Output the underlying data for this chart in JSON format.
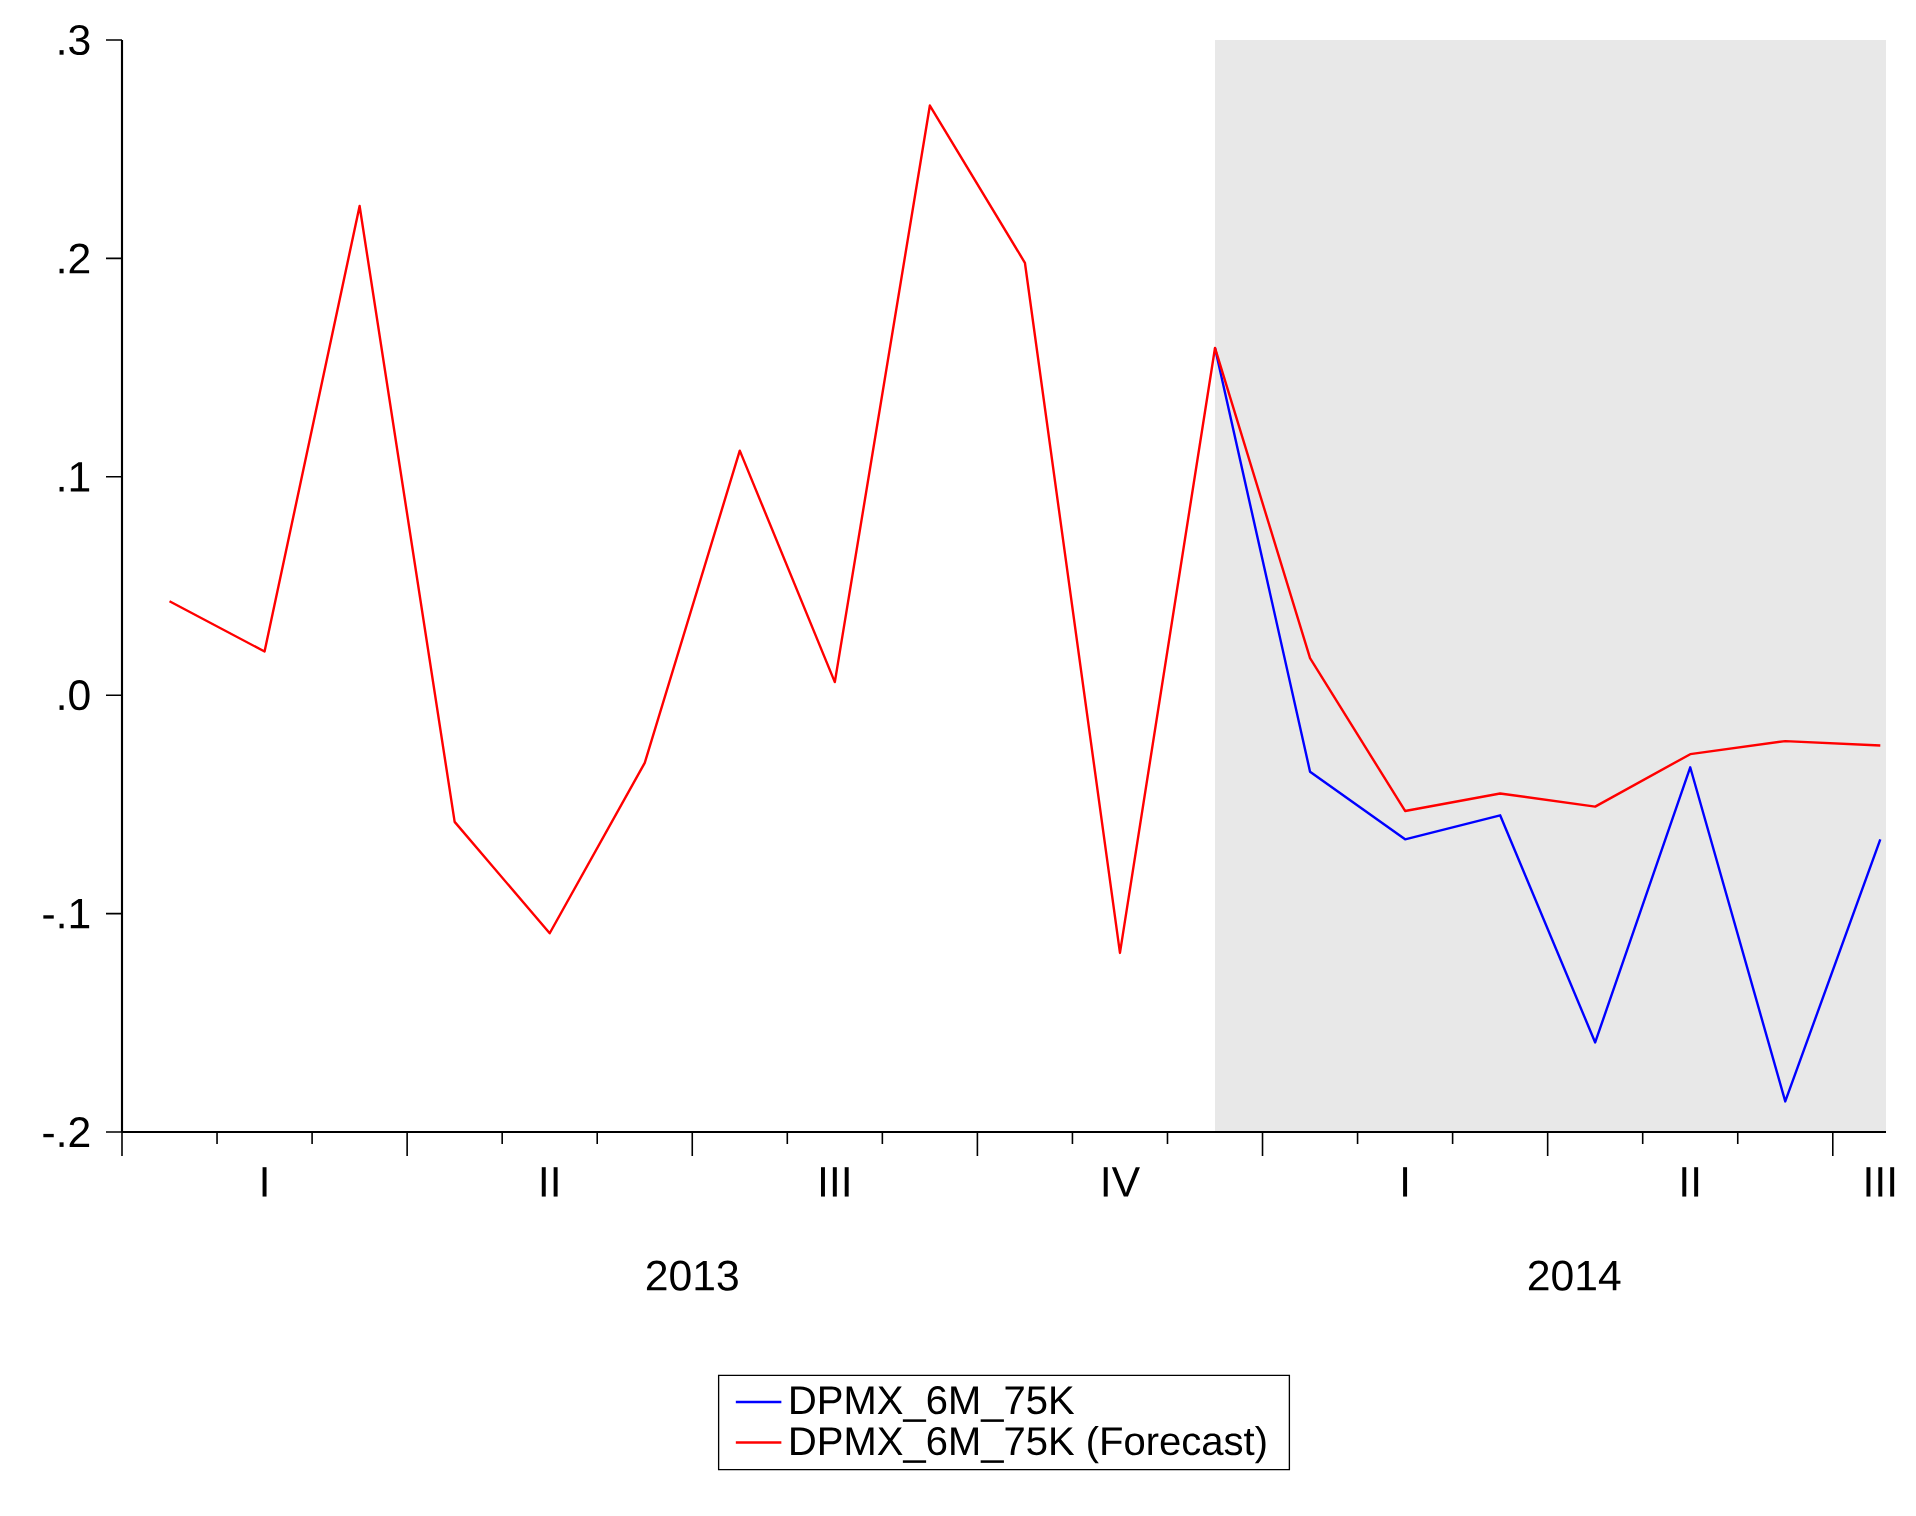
{
  "chart_data": {
    "type": "line",
    "categories": [
      null,
      "I",
      null,
      null,
      "II",
      null,
      null,
      "III",
      null,
      null,
      "IV",
      null,
      null,
      "I",
      null,
      null,
      "II",
      null,
      "III"
    ],
    "series": [
      {
        "name": "DPMX_6M_75K",
        "color": "#0000ff",
        "values": [
          null,
          null,
          null,
          null,
          null,
          null,
          null,
          null,
          null,
          null,
          null,
          0.159,
          -0.035,
          -0.066,
          -0.055,
          -0.159,
          -0.033,
          -0.186,
          -0.066
        ]
      },
      {
        "name": "DPMX_6M_75K (Forecast)",
        "color": "#ff0000",
        "values": [
          0.043,
          0.02,
          0.224,
          -0.058,
          -0.109,
          -0.031,
          0.112,
          0.006,
          0.27,
          0.198,
          -0.118,
          0.159,
          0.017,
          -0.053,
          -0.045,
          -0.051,
          -0.027,
          -0.021,
          -0.023
        ]
      }
    ],
    "ylim": [
      -0.2,
      0.3
    ],
    "yticks": [
      {
        "value": 0.3,
        "label": ".3"
      },
      {
        "value": 0.2,
        "label": ".2"
      },
      {
        "value": 0.1,
        "label": ".1"
      },
      {
        "value": 0.0,
        "label": ".0"
      },
      {
        "value": -0.1,
        "label": "-.1"
      },
      {
        "value": -0.2,
        "label": "-.2"
      }
    ],
    "annotations": [
      "2013",
      "2014"
    ],
    "legend": "bottom"
  }
}
